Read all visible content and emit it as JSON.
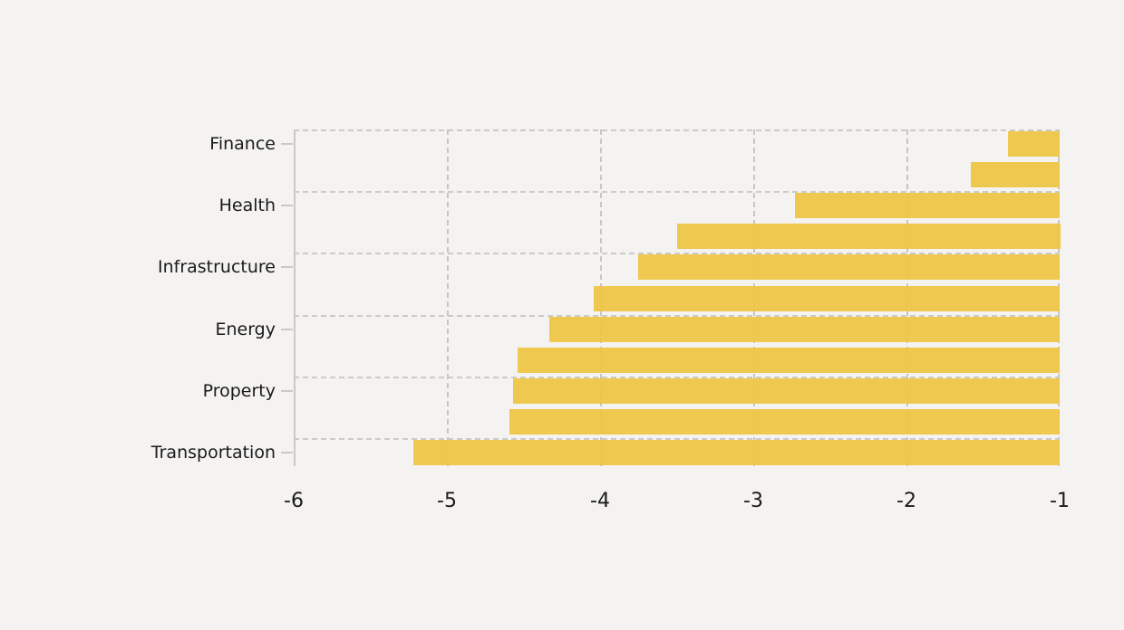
{
  "page": {
    "background_color": "#f4f3f1",
    "text_color": "#1a1a1a"
  },
  "chart_data": {
    "type": "bar",
    "orientation": "horizontal",
    "title": "",
    "xlabel": "",
    "ylabel": "",
    "bars": [
      {
        "label": "Finance",
        "value": -1.34
      },
      {
        "label": "",
        "value": -1.58
      },
      {
        "label": "Health",
        "value": -2.73
      },
      {
        "label": "",
        "value": -3.5
      },
      {
        "label": "Infrastructure",
        "value": -3.75
      },
      {
        "label": "",
        "value": -4.04
      },
      {
        "label": "Energy",
        "value": -4.33
      },
      {
        "label": "",
        "value": -4.54
      },
      {
        "label": "Property",
        "value": -4.57
      },
      {
        "label": "",
        "value": -4.59
      },
      {
        "label": "Transportation",
        "value": -5.22
      }
    ],
    "bars_anchored_at": -1,
    "x_axis": {
      "min": -6,
      "max": -1,
      "tick_values": [
        -6,
        -5,
        -4,
        -3,
        -2,
        -1
      ],
      "tick_labels": [
        "-6",
        "-5",
        "-4",
        "-3",
        "-2",
        "-1"
      ]
    },
    "y_axis": {
      "labels": [
        "Finance",
        "Health",
        "Infrastructure",
        "Energy",
        "Property",
        "Transportation"
      ],
      "label_bar_indices": [
        0,
        2,
        4,
        6,
        8,
        10
      ]
    },
    "grid": "dashed",
    "legend": "none",
    "style": {
      "bar_color": "#eec544",
      "bar_opacity": 0.94,
      "gridline_color": "#c9c9c6",
      "axis_line_color": "#c9c9c6",
      "tick_label_color": "#1a1a1a"
    }
  }
}
